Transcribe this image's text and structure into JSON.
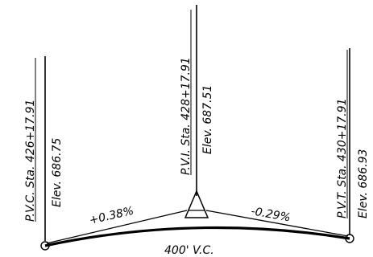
{
  "pvc": {
    "station": "P.V.C. Sta. 426+17.91",
    "elevation": "Elev. 686.75"
  },
  "pvi": {
    "station": "P.V.I. Sta. 428+17.91",
    "elevation": "Elev. 687.51"
  },
  "pvt": {
    "station": "P.V.T. Sta. 430+17.91",
    "elevation": "Elev. 686.93"
  },
  "grades": {
    "incoming": "+0.38%",
    "outgoing": "-0.29%"
  },
  "curve_length": "400' V.C."
}
